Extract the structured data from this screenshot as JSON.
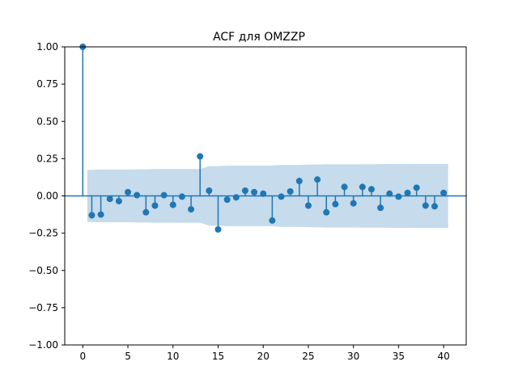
{
  "chart_data": {
    "type": "stem",
    "title": "ACF для OMZZP",
    "xlabel": "",
    "ylabel": "",
    "xlim": [
      -2,
      42.5
    ],
    "ylim": [
      -1.0,
      1.0
    ],
    "xticks": [
      0,
      5,
      10,
      15,
      20,
      25,
      30,
      35,
      40
    ],
    "xtick_labels": [
      "0",
      "5",
      "10",
      "15",
      "20",
      "25",
      "30",
      "35",
      "40"
    ],
    "yticks": [
      1.0,
      0.75,
      0.5,
      0.25,
      0.0,
      -0.25,
      -0.5,
      -0.75,
      -1.0
    ],
    "ytick_labels": [
      "1.00",
      "0.75",
      "0.50",
      "0.25",
      "0.00",
      "−0.25",
      "−0.50",
      "−0.75",
      "−1.00"
    ],
    "grid": false,
    "legend": "none",
    "colors": {
      "series": "#1f77b4",
      "band": "#c6dbec"
    },
    "lags": [
      0,
      1,
      2,
      3,
      4,
      5,
      6,
      7,
      8,
      9,
      10,
      11,
      12,
      13,
      14,
      15,
      16,
      17,
      18,
      19,
      20,
      21,
      22,
      23,
      24,
      25,
      26,
      27,
      28,
      29,
      30,
      31,
      32,
      33,
      34,
      35,
      36,
      37,
      38,
      39,
      40
    ],
    "acf": [
      1.0,
      -0.13,
      -0.125,
      -0.02,
      -0.035,
      0.025,
      0.005,
      -0.11,
      -0.065,
      0.005,
      -0.06,
      -0.005,
      -0.09,
      0.265,
      0.035,
      -0.225,
      -0.025,
      -0.01,
      0.035,
      0.025,
      0.015,
      -0.165,
      -0.005,
      0.03,
      0.1,
      -0.065,
      0.11,
      -0.11,
      -0.055,
      0.06,
      -0.05,
      0.06,
      0.045,
      -0.08,
      0.015,
      -0.005,
      0.02,
      0.055,
      -0.065,
      -0.07,
      0.02
    ],
    "confidence_band": {
      "x": [
        0.5,
        1,
        2,
        3,
        4,
        5,
        6,
        7,
        8,
        9,
        10,
        11,
        12,
        13,
        14,
        15,
        16,
        17,
        18,
        19,
        20,
        21,
        22,
        23,
        24,
        25,
        26,
        27,
        28,
        29,
        30,
        31,
        32,
        33,
        34,
        35,
        36,
        37,
        38,
        39,
        40,
        40.5
      ],
      "upper": [
        0.175,
        0.175,
        0.177,
        0.177,
        0.177,
        0.177,
        0.178,
        0.178,
        0.18,
        0.18,
        0.18,
        0.18,
        0.18,
        0.18,
        0.2,
        0.2,
        0.203,
        0.203,
        0.203,
        0.203,
        0.203,
        0.203,
        0.208,
        0.208,
        0.208,
        0.21,
        0.21,
        0.212,
        0.212,
        0.212,
        0.212,
        0.213,
        0.213,
        0.213,
        0.214,
        0.214,
        0.214,
        0.215,
        0.215,
        0.215,
        0.215,
        0.215
      ],
      "lower": [
        -0.175,
        -0.175,
        -0.177,
        -0.177,
        -0.177,
        -0.177,
        -0.178,
        -0.178,
        -0.18,
        -0.18,
        -0.18,
        -0.18,
        -0.18,
        -0.18,
        -0.2,
        -0.2,
        -0.203,
        -0.203,
        -0.203,
        -0.203,
        -0.203,
        -0.203,
        -0.208,
        -0.208,
        -0.208,
        -0.21,
        -0.21,
        -0.212,
        -0.212,
        -0.212,
        -0.212,
        -0.213,
        -0.213,
        -0.213,
        -0.214,
        -0.214,
        -0.214,
        -0.215,
        -0.215,
        -0.215,
        -0.215,
        -0.215
      ]
    }
  }
}
